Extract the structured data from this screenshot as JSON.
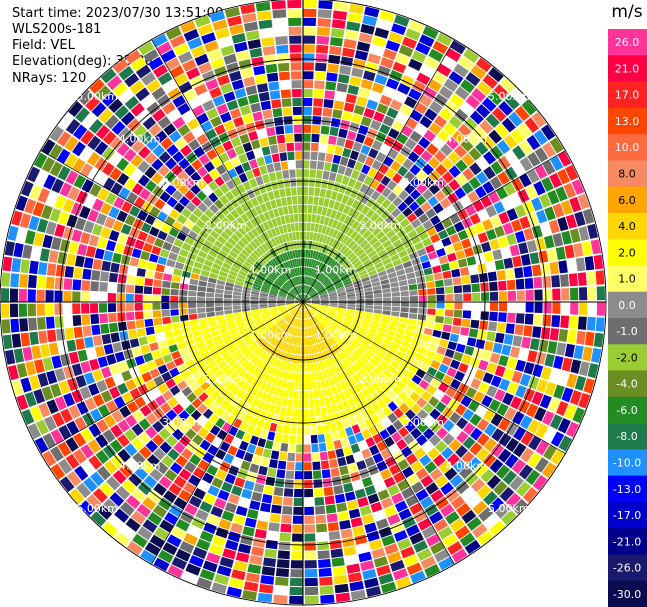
{
  "header": {
    "start_time": "Start time: 2023/07/30 13:51:00",
    "instrument": "WLS200s-181",
    "field": "Field: VEL",
    "elevation": "Elevation(deg): 35.30",
    "nrays": "NRays: 120"
  },
  "chart_data": {
    "type": "heatmap",
    "projection": "polar-ppi",
    "field": "VEL",
    "n_rays": 120,
    "range_rings_km": [
      "1.00km",
      "2.00km",
      "3.00km",
      "4.00km",
      "5.00km"
    ],
    "colorbar": {
      "unit": "m/s",
      "levels": [
        {
          "label": "26.0",
          "color": "#ff3399"
        },
        {
          "label": "21.0",
          "color": "#ff0044"
        },
        {
          "label": "17.0",
          "color": "#ff2222"
        },
        {
          "label": "13.0",
          "color": "#ff4500"
        },
        {
          "label": "10.0",
          "color": "#ff6a40"
        },
        {
          "label": "8.0",
          "color": "#f78a60"
        },
        {
          "label": "6.0",
          "color": "#ffa500"
        },
        {
          "label": "4.0",
          "color": "#ffd700"
        },
        {
          "label": "2.0",
          "color": "#ffff00"
        },
        {
          "label": "1.0",
          "color": "#ffff66"
        },
        {
          "label": "0.0",
          "color": "#8c8c8c"
        },
        {
          "label": "-1.0",
          "color": "#6e6e6e"
        },
        {
          "label": "-2.0",
          "color": "#9acd32"
        },
        {
          "label": "-4.0",
          "color": "#6b8e23"
        },
        {
          "label": "-6.0",
          "color": "#228b22"
        },
        {
          "label": "-8.0",
          "color": "#1e7a4a"
        },
        {
          "label": "-10.0",
          "color": "#1e90ff"
        },
        {
          "label": "-13.0",
          "color": "#0000ff"
        },
        {
          "label": "-17.0",
          "color": "#0000cd"
        },
        {
          "label": "-21.0",
          "color": "#00008b"
        },
        {
          "label": "-26.0",
          "color": "#191970"
        },
        {
          "label": "-30.0",
          "color": "#0b0b50"
        }
      ]
    }
  }
}
